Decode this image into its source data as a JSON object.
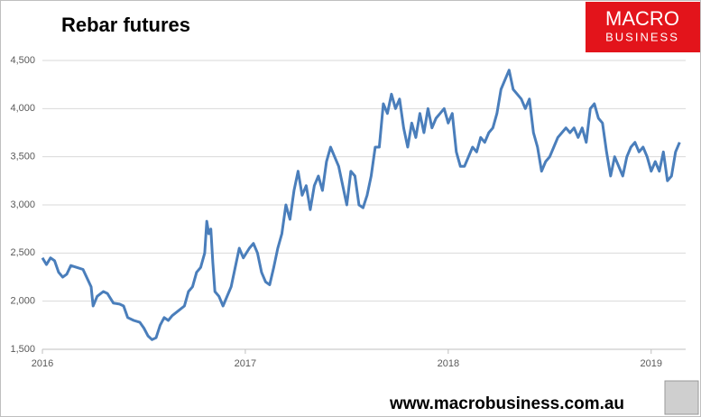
{
  "chart_data": {
    "type": "line",
    "title": "Rebar futures",
    "logo": {
      "line1": "MACRO",
      "line2": "BUSINESS"
    },
    "footer": "www.macrobusiness.com.au",
    "color": "#4a7ebb",
    "grid": true,
    "xlim": [
      2016,
      2019.17
    ],
    "xticks": [
      2016,
      2017,
      2018,
      2019
    ],
    "ylim": [
      1500,
      4500
    ],
    "yticks": [
      {
        "value": 1500,
        "label": "1,500"
      },
      {
        "value": 2000,
        "label": "2,000"
      },
      {
        "value": 2500,
        "label": "2,500"
      },
      {
        "value": 3000,
        "label": "3,000"
      },
      {
        "value": 3500,
        "label": "3,500"
      },
      {
        "value": 4000,
        "label": "4,000"
      },
      {
        "value": 4500,
        "label": "4,500"
      }
    ],
    "x": [
      2016.0,
      2016.02,
      2016.04,
      2016.06,
      2016.08,
      2016.1,
      2016.12,
      2016.14,
      2016.17,
      2016.2,
      2016.22,
      2016.24,
      2016.25,
      2016.27,
      2016.3,
      2016.32,
      2016.35,
      2016.38,
      2016.4,
      2016.42,
      2016.45,
      2016.48,
      2016.5,
      2016.52,
      2016.54,
      2016.56,
      2016.58,
      2016.6,
      2016.62,
      2016.64,
      2016.67,
      2016.7,
      2016.72,
      2016.74,
      2016.76,
      2016.78,
      2016.8,
      2016.81,
      2016.82,
      2016.83,
      2016.84,
      2016.85,
      2016.87,
      2016.89,
      2016.91,
      2016.93,
      2016.95,
      2016.97,
      2016.99,
      2017.02,
      2017.04,
      2017.06,
      2017.08,
      2017.1,
      2017.12,
      2017.14,
      2017.16,
      2017.18,
      2017.2,
      2017.22,
      2017.24,
      2017.26,
      2017.28,
      2017.3,
      2017.32,
      2017.34,
      2017.36,
      2017.38,
      2017.4,
      2017.42,
      2017.44,
      2017.46,
      2017.48,
      2017.5,
      2017.52,
      2017.54,
      2017.56,
      2017.58,
      2017.6,
      2017.62,
      2017.64,
      2017.66,
      2017.68,
      2017.7,
      2017.72,
      2017.74,
      2017.76,
      2017.78,
      2017.8,
      2017.82,
      2017.84,
      2017.86,
      2017.88,
      2017.9,
      2017.92,
      2017.94,
      2017.96,
      2017.98,
      2018.0,
      2018.02,
      2018.04,
      2018.06,
      2018.08,
      2018.1,
      2018.12,
      2018.14,
      2018.16,
      2018.18,
      2018.2,
      2018.22,
      2018.24,
      2018.26,
      2018.28,
      2018.3,
      2018.32,
      2018.34,
      2018.36,
      2018.38,
      2018.4,
      2018.42,
      2018.44,
      2018.46,
      2018.48,
      2018.5,
      2018.52,
      2018.54,
      2018.56,
      2018.58,
      2018.6,
      2018.62,
      2018.64,
      2018.66,
      2018.68,
      2018.7,
      2018.72,
      2018.74,
      2018.76,
      2018.78,
      2018.8,
      2018.82,
      2018.84,
      2018.86,
      2018.88,
      2018.9,
      2018.92,
      2018.94,
      2018.96,
      2018.98,
      2019.0,
      2019.02,
      2019.04,
      2019.06,
      2019.08,
      2019.1,
      2019.12,
      2019.14
    ],
    "values": [
      2450,
      2380,
      2450,
      2420,
      2300,
      2250,
      2280,
      2370,
      2350,
      2330,
      2240,
      2150,
      1950,
      2050,
      2100,
      2080,
      1980,
      1970,
      1950,
      1830,
      1800,
      1780,
      1720,
      1640,
      1600,
      1620,
      1750,
      1830,
      1800,
      1850,
      1900,
      1950,
      2100,
      2150,
      2300,
      2350,
      2500,
      2830,
      2700,
      2750,
      2400,
      2100,
      2050,
      1950,
      2050,
      2150,
      2350,
      2550,
      2450,
      2550,
      2600,
      2500,
      2300,
      2200,
      2170,
      2350,
      2550,
      2700,
      3000,
      2850,
      3150,
      3350,
      3100,
      3200,
      2950,
      3200,
      3300,
      3150,
      3450,
      3600,
      3500,
      3400,
      3200,
      3000,
      3350,
      3300,
      3000,
      2970,
      3100,
      3300,
      3600,
      3600,
      4050,
      3950,
      4150,
      4000,
      4100,
      3800,
      3600,
      3850,
      3700,
      3950,
      3750,
      4000,
      3800,
      3900,
      3950,
      4000,
      3850,
      3950,
      3550,
      3400,
      3400,
      3500,
      3600,
      3550,
      3700,
      3650,
      3750,
      3800,
      3950,
      4200,
      4300,
      4400,
      4200,
      4150,
      4100,
      4000,
      4100,
      3750,
      3600,
      3350,
      3450,
      3500,
      3600,
      3700,
      3750,
      3800,
      3750,
      3800,
      3700,
      3800,
      3650,
      4000,
      4050,
      3900,
      3850,
      3550,
      3300,
      3500,
      3400,
      3300,
      3500,
      3600,
      3650,
      3550,
      3600,
      3500,
      3350,
      3450,
      3350,
      3550,
      3250,
      3300,
      3550,
      3650
    ]
  }
}
